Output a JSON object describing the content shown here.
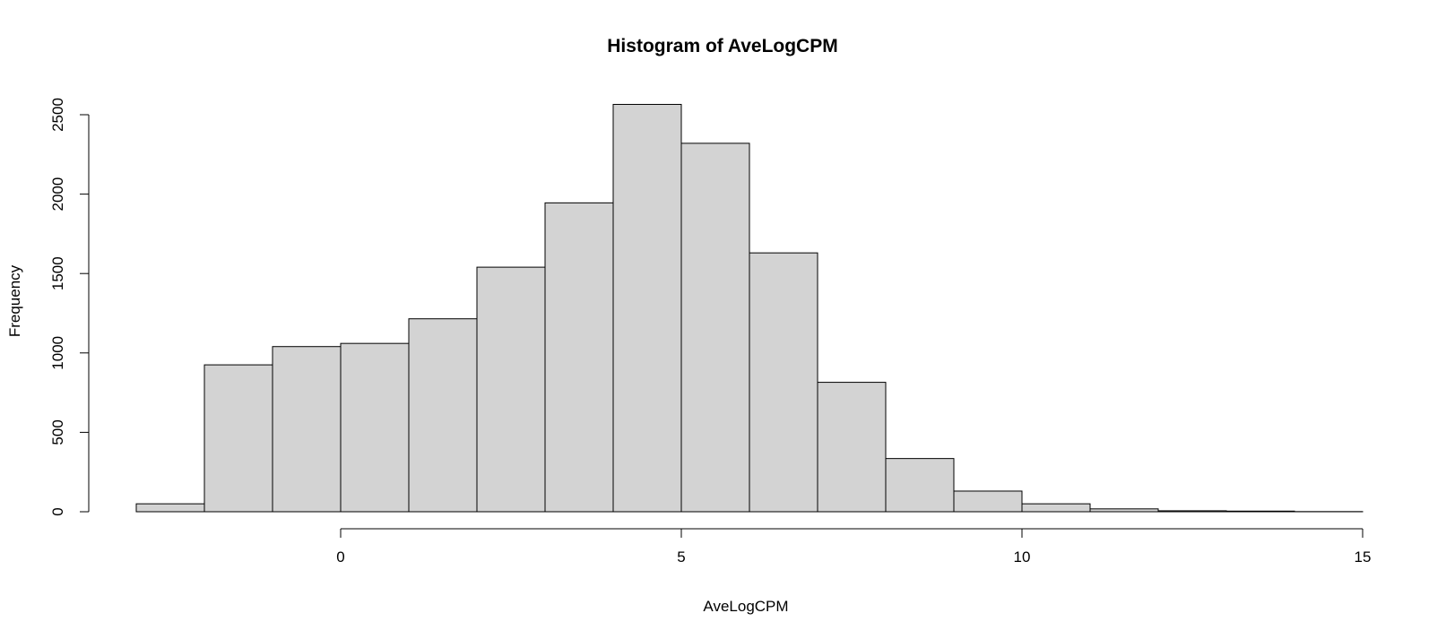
{
  "chart_data": {
    "type": "bar",
    "title": "Histogram of AveLogCPM",
    "xlabel": "AveLogCPM",
    "ylabel": "Frequency",
    "bins": [
      {
        "x0": -3,
        "x1": -2,
        "count": 50
      },
      {
        "x0": -2,
        "x1": -1,
        "count": 925
      },
      {
        "x0": -1,
        "x1": 0,
        "count": 1040
      },
      {
        "x0": 0,
        "x1": 1,
        "count": 1060
      },
      {
        "x0": 1,
        "x1": 2,
        "count": 1215
      },
      {
        "x0": 2,
        "x1": 3,
        "count": 1540
      },
      {
        "x0": 3,
        "x1": 4,
        "count": 1945
      },
      {
        "x0": 4,
        "x1": 5,
        "count": 2565
      },
      {
        "x0": 5,
        "x1": 6,
        "count": 2320
      },
      {
        "x0": 6,
        "x1": 7,
        "count": 1630
      },
      {
        "x0": 7,
        "x1": 8,
        "count": 815
      },
      {
        "x0": 8,
        "x1": 9,
        "count": 335
      },
      {
        "x0": 9,
        "x1": 10,
        "count": 130
      },
      {
        "x0": 10,
        "x1": 11,
        "count": 50
      },
      {
        "x0": 11,
        "x1": 12,
        "count": 18
      },
      {
        "x0": 12,
        "x1": 13,
        "count": 6
      },
      {
        "x0": 13,
        "x1": 14,
        "count": 4
      },
      {
        "x0": 14,
        "x1": 15,
        "count": 1
      }
    ],
    "xticks": [
      0,
      5,
      10,
      15
    ],
    "xtick_labels": [
      "0",
      "5",
      "10",
      "15"
    ],
    "yticks": [
      0,
      500,
      1000,
      1500,
      2000,
      2500
    ],
    "ytick_labels": [
      "0",
      "500",
      "1000",
      "1500",
      "2000",
      "2500"
    ],
    "xlim": [
      -3,
      15
    ],
    "ylim": [
      0,
      2500
    ],
    "bar_fill": "#d3d3d3",
    "bar_stroke": "#000000",
    "grid": false
  }
}
